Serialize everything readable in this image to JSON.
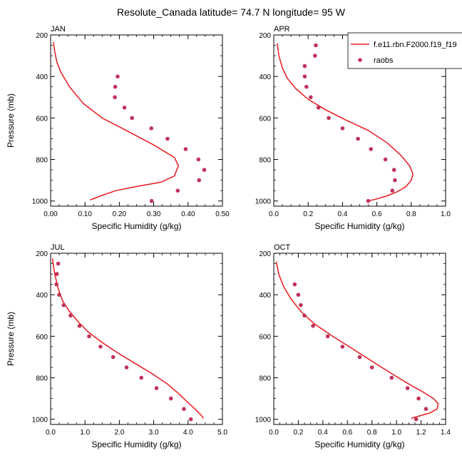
{
  "figure_title": "Resolute_Canada  latitude= 74.7 N longitude= 95 W",
  "colors": {
    "model": "#e8191e",
    "obs": "#c0335a"
  },
  "legend": {
    "model_label": "f.e11.rbn.F2000.f19_f19",
    "obs_label": "raobs"
  },
  "chart_data": [
    {
      "type": "line",
      "panel": "JAN",
      "xlabel": "Specific Humidity (g/kg)",
      "ylabel": "Pressure (mb)",
      "xlim": [
        0,
        0.5
      ],
      "ylim": [
        200,
        1025
      ],
      "x_ticks": [
        0.0,
        0.1,
        0.2,
        0.3,
        0.4,
        0.5
      ],
      "x_tick_labels": [
        "0.00",
        "0.10",
        "0.20",
        "0.30",
        "0.40",
        "0.50"
      ],
      "y_ticks": [
        200,
        400,
        600,
        800,
        1000
      ],
      "y_tick_labels": [
        "200",
        "400",
        "600",
        "800",
        "1000"
      ],
      "series": [
        {
          "name": "f.e11.rbn.F2000.f19_f19",
          "style": "line",
          "x": [
            0.008,
            0.012,
            0.018,
            0.03,
            0.055,
            0.095,
            0.15,
            0.22,
            0.3,
            0.36,
            0.372,
            0.36,
            0.32,
            0.25,
            0.19,
            0.155,
            0.115
          ],
          "y": [
            235,
            280,
            330,
            380,
            450,
            530,
            600,
            660,
            730,
            790,
            830,
            880,
            910,
            930,
            950,
            970,
            995
          ]
        },
        {
          "name": "raobs",
          "style": "points",
          "x": [
            0.195,
            0.188,
            0.187,
            0.215,
            0.237,
            0.293,
            0.34,
            0.393,
            0.43,
            0.447,
            0.432,
            0.37,
            0.294
          ],
          "y": [
            400,
            450,
            500,
            550,
            600,
            650,
            700,
            750,
            800,
            850,
            900,
            950,
            1000
          ]
        }
      ]
    },
    {
      "type": "line",
      "panel": "APR",
      "xlabel": "Specific Humidity (g/kg)",
      "ylabel": "",
      "xlim": [
        0,
        1.0
      ],
      "ylim": [
        200,
        1025
      ],
      "x_ticks": [
        0.0,
        0.2,
        0.4,
        0.6,
        0.8,
        1.0
      ],
      "x_tick_labels": [
        "0.0",
        "0.2",
        "0.4",
        "0.6",
        "0.8",
        "1.0"
      ],
      "y_ticks": [
        200,
        400,
        600,
        800,
        1000
      ],
      "y_tick_labels": [
        "200",
        "400",
        "600",
        "800",
        "1000"
      ],
      "series": [
        {
          "name": "f.e11.rbn.F2000.f19_f19",
          "style": "line",
          "x": [
            0.02,
            0.03,
            0.05,
            0.08,
            0.13,
            0.2,
            0.3,
            0.42,
            0.55,
            0.66,
            0.74,
            0.79,
            0.81,
            0.8,
            0.77,
            0.72,
            0.66,
            0.6,
            0.55
          ],
          "y": [
            240,
            300,
            360,
            410,
            460,
            510,
            560,
            610,
            660,
            720,
            780,
            830,
            870,
            900,
            930,
            955,
            975,
            990,
            1000
          ]
        },
        {
          "name": "raobs",
          "style": "points",
          "x": [
            0.245,
            0.24,
            0.18,
            0.18,
            0.19,
            0.215,
            0.26,
            0.32,
            0.4,
            0.49,
            0.565,
            0.65,
            0.7,
            0.705,
            0.69,
            0.55
          ],
          "y": [
            250,
            300,
            350,
            400,
            450,
            500,
            550,
            600,
            650,
            700,
            750,
            800,
            850,
            900,
            950,
            1000
          ]
        }
      ]
    },
    {
      "type": "line",
      "panel": "JUL",
      "xlabel": "Specific Humidity (g/kg)",
      "ylabel": "Pressure (mb)",
      "xlim": [
        0,
        5.0
      ],
      "ylim": [
        200,
        1025
      ],
      "x_ticks": [
        0.0,
        1.0,
        2.0,
        3.0,
        4.0,
        5.0
      ],
      "x_tick_labels": [
        "0.0",
        "1.0",
        "2.0",
        "3.0",
        "4.0",
        "5.0"
      ],
      "y_ticks": [
        200,
        400,
        600,
        800,
        1000
      ],
      "y_tick_labels": [
        "200",
        "400",
        "600",
        "800",
        "1000"
      ],
      "series": [
        {
          "name": "f.e11.rbn.F2000.f19_f19",
          "style": "line",
          "x": [
            0.05,
            0.12,
            0.22,
            0.35,
            0.55,
            0.8,
            1.1,
            1.5,
            1.95,
            2.45,
            2.95,
            3.4,
            3.75,
            4.0,
            4.2,
            4.35,
            4.45
          ],
          "y": [
            225,
            300,
            370,
            430,
            480,
            530,
            580,
            630,
            680,
            730,
            780,
            830,
            880,
            920,
            950,
            975,
            995
          ]
        },
        {
          "name": "raobs",
          "style": "points",
          "x": [
            0.22,
            0.18,
            0.17,
            0.25,
            0.38,
            0.58,
            0.84,
            1.12,
            1.45,
            1.82,
            2.21,
            2.64,
            3.08,
            3.5,
            3.88,
            4.08
          ],
          "y": [
            250,
            300,
            350,
            400,
            450,
            500,
            550,
            600,
            650,
            700,
            750,
            800,
            850,
            900,
            950,
            1000
          ]
        }
      ]
    },
    {
      "type": "line",
      "panel": "OCT",
      "xlabel": "Specific Humidity (g/kg)",
      "ylabel": "",
      "xlim": [
        0,
        1.4
      ],
      "ylim": [
        200,
        1025
      ],
      "x_ticks": [
        0.0,
        0.2,
        0.4,
        0.6,
        0.8,
        1.0,
        1.2,
        1.4
      ],
      "x_tick_labels": [
        "0.0",
        "0.2",
        "0.4",
        "0.6",
        "0.8",
        "1.0",
        "1.2",
        "1.4"
      ],
      "y_ticks": [
        200,
        400,
        600,
        800,
        1000
      ],
      "y_tick_labels": [
        "200",
        "400",
        "600",
        "800",
        "1000"
      ],
      "series": [
        {
          "name": "f.e11.rbn.F2000.f19_f19",
          "style": "line",
          "x": [
            0.02,
            0.04,
            0.08,
            0.14,
            0.22,
            0.33,
            0.48,
            0.64,
            0.8,
            0.96,
            1.1,
            1.22,
            1.3,
            1.34,
            1.33,
            1.27,
            1.18,
            1.12
          ],
          "y": [
            240,
            300,
            360,
            420,
            480,
            540,
            600,
            660,
            720,
            780,
            830,
            870,
            900,
            925,
            950,
            970,
            985,
            995
          ]
        },
        {
          "name": "raobs",
          "style": "points",
          "x": [
            0.17,
            0.2,
            0.22,
            0.25,
            0.32,
            0.44,
            0.56,
            0.7,
            0.8,
            0.96,
            1.09,
            1.18,
            1.24,
            1.16
          ],
          "y": [
            350,
            400,
            450,
            500,
            550,
            600,
            650,
            700,
            750,
            800,
            850,
            900,
            950,
            1000
          ]
        }
      ]
    }
  ]
}
